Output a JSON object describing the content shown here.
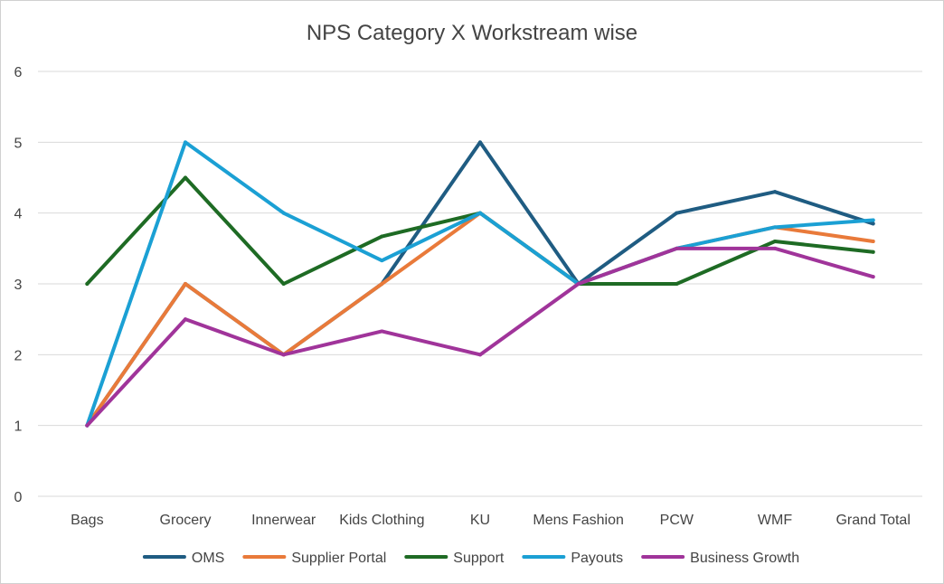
{
  "chart_data": {
    "type": "line",
    "title": "NPS Category X Workstream wise",
    "xlabel": "",
    "ylabel": "",
    "ylim": [
      0,
      6
    ],
    "yticks": [
      0,
      1,
      2,
      3,
      4,
      5,
      6
    ],
    "grid": true,
    "legend_position": "bottom",
    "categories": [
      "Bags",
      "Grocery",
      "Innerwear",
      "Kids Clothing",
      "KU",
      "Mens Fashion",
      "PCW",
      "WMF",
      "Grand Total"
    ],
    "series": [
      {
        "name": "OMS",
        "color": "#1f5c82",
        "values": [
          1,
          3,
          2,
          3,
          5,
          3,
          4,
          4.3,
          3.85
        ]
      },
      {
        "name": "Supplier Portal",
        "color": "#e97a3a",
        "values": [
          1,
          3,
          2,
          3,
          4,
          3,
          3.5,
          3.8,
          3.6
        ]
      },
      {
        "name": "Support",
        "color": "#1e6b24",
        "values": [
          3,
          4.5,
          3,
          3.67,
          4,
          3,
          3,
          3.6,
          3.45
        ]
      },
      {
        "name": "Payouts",
        "color": "#1ba0d4",
        "values": [
          1,
          5,
          4,
          3.33,
          4,
          3,
          3.5,
          3.8,
          3.9
        ]
      },
      {
        "name": "Business Growth",
        "color": "#a0349a",
        "values": [
          1,
          2.5,
          2,
          2.33,
          2,
          3,
          3.5,
          3.5,
          3.1
        ]
      }
    ]
  }
}
